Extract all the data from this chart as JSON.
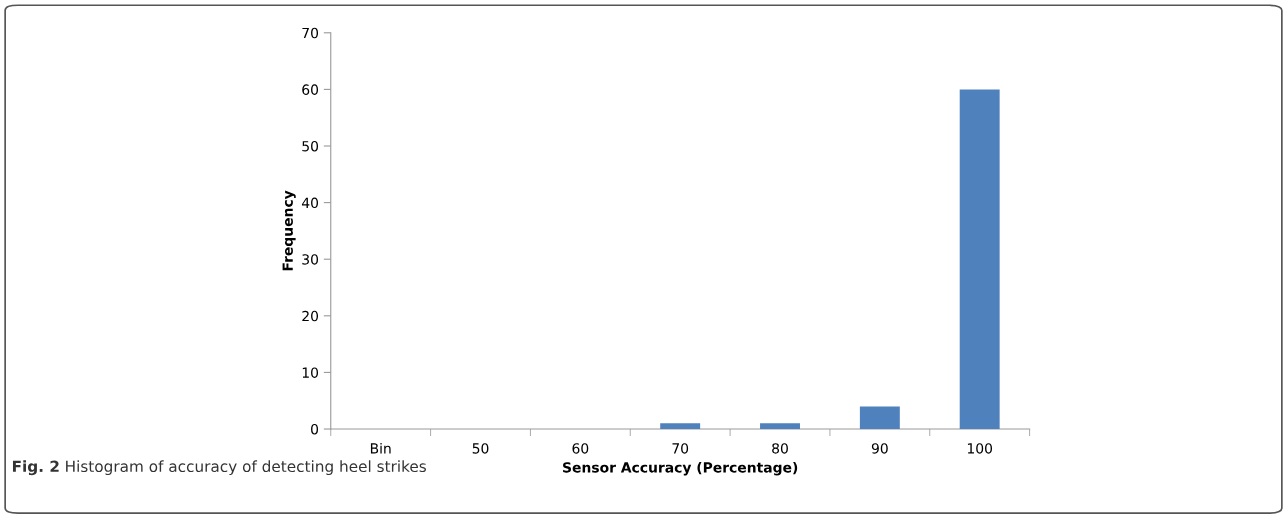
{
  "chart_data": {
    "type": "bar",
    "categories": [
      "Bin",
      "50",
      "60",
      "70",
      "80",
      "90",
      "100"
    ],
    "values": [
      0,
      0,
      0,
      1,
      1,
      4,
      60
    ],
    "color": "#4f81bd",
    "xlabel": "Sensor Accuracy (Percentage)",
    "ylabel": "Frequency",
    "ylim": [
      0,
      70
    ],
    "yticks": [
      0,
      10,
      20,
      30,
      40,
      50,
      60,
      70
    ],
    "grid": false,
    "legend": false,
    "annotations": [
      "Fig. 2",
      "Histogram of accuracy of detecting heel strikes"
    ]
  }
}
